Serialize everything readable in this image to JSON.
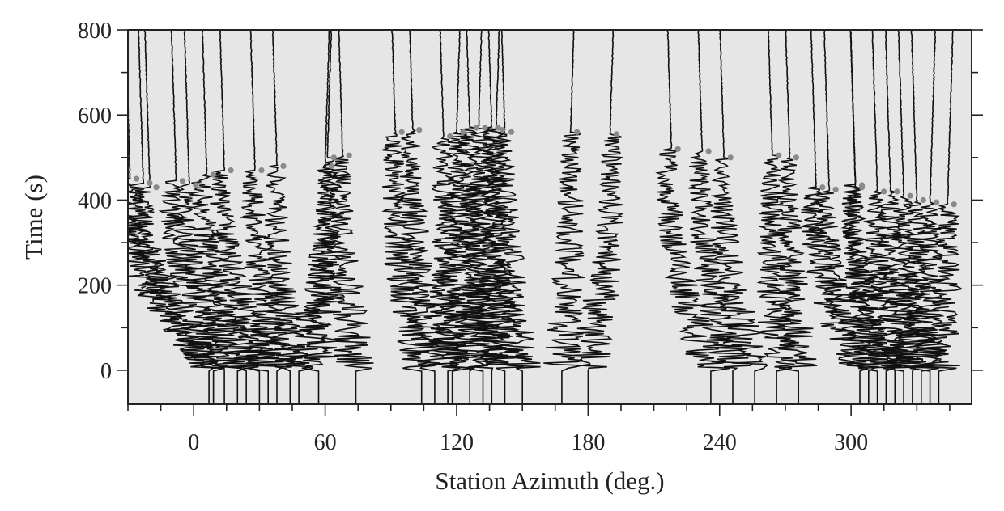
{
  "chart_data": {
    "type": "line",
    "title": "",
    "xlabel": "Station Azimuth (deg.)",
    "ylabel": "Time (s)",
    "xlim": [
      -30,
      355
    ],
    "ylim": [
      -80,
      800
    ],
    "x_ticks": [
      0,
      60,
      120,
      180,
      240,
      300
    ],
    "y_ticks": [
      0,
      200,
      400,
      600,
      800
    ],
    "x_minor_step": 15,
    "y_minor_step": 100,
    "plot_background": "#e6e6e6",
    "trace_color": "#111111",
    "marker_color": "#8a8a8a",
    "grid": false,
    "legend": "none",
    "series_description": "Seismogram traces plotted at station azimuth; each trace is flat near its azimuth before t=0, then wiggles with increasing offset to the right and settles after the marked (gray dot) time.",
    "traces": [
      {
        "azimuth": 7,
        "drift": -36,
        "marker_time": 450
      },
      {
        "azimuth": 9,
        "drift": -32,
        "marker_time": 440
      },
      {
        "azimuth": 14,
        "drift": -34,
        "marker_time": 430
      },
      {
        "azimuth": 20,
        "drift": -28,
        "marker_time": 445
      },
      {
        "azimuth": 24,
        "drift": -26,
        "marker_time": 435
      },
      {
        "azimuth": 30,
        "drift": -24,
        "marker_time": 460
      },
      {
        "azimuth": 34,
        "drift": -20,
        "marker_time": 470
      },
      {
        "azimuth": 38,
        "drift": -10,
        "marker_time": 470
      },
      {
        "azimuth": 44,
        "drift": -6,
        "marker_time": 480
      },
      {
        "azimuth": 48,
        "drift": 12,
        "marker_time": 480
      },
      {
        "azimuth": 57,
        "drift": 4,
        "marker_time": 500
      },
      {
        "azimuth": 74,
        "drift": -6,
        "marker_time": 505
      },
      {
        "azimuth": 104,
        "drift": -12,
        "marker_time": 560
      },
      {
        "azimuth": 110,
        "drift": -10,
        "marker_time": 565
      },
      {
        "azimuth": 116,
        "drift": 4,
        "marker_time": 560
      },
      {
        "azimuth": 118,
        "drift": -4,
        "marker_time": 550
      },
      {
        "azimuth": 126,
        "drift": 4,
        "marker_time": 570
      },
      {
        "azimuth": 132,
        "drift": -6,
        "marker_time": 570
      },
      {
        "azimuth": 136,
        "drift": 2,
        "marker_time": 565
      },
      {
        "azimuth": 142,
        "drift": -6,
        "marker_time": 570
      },
      {
        "azimuth": 150,
        "drift": -8,
        "marker_time": 560
      },
      {
        "azimuth": 168,
        "drift": 4,
        "marker_time": 560
      },
      {
        "azimuth": 180,
        "drift": 10,
        "marker_time": 555
      },
      {
        "azimuth": 236,
        "drift": -18,
        "marker_time": 520
      },
      {
        "azimuth": 246,
        "drift": -14,
        "marker_time": 515
      },
      {
        "azimuth": 256,
        "drift": -14,
        "marker_time": 500
      },
      {
        "azimuth": 266,
        "drift": -2,
        "marker_time": 505
      },
      {
        "azimuth": 276,
        "drift": -4,
        "marker_time": 500
      },
      {
        "azimuth": 304,
        "drift": -20,
        "marker_time": 430
      },
      {
        "azimuth": 308,
        "drift": -18,
        "marker_time": 425
      },
      {
        "azimuth": 312,
        "drift": -10,
        "marker_time": 435
      },
      {
        "azimuth": 316,
        "drift": -14,
        "marker_time": 430
      },
      {
        "azimuth": 320,
        "drift": -8,
        "marker_time": 420
      },
      {
        "azimuth": 324,
        "drift": -6,
        "marker_time": 420
      },
      {
        "azimuth": 328,
        "drift": -4,
        "marker_time": 410
      },
      {
        "azimuth": 332,
        "drift": -2,
        "marker_time": 400
      },
      {
        "azimuth": 336,
        "drift": 0,
        "marker_time": 395
      },
      {
        "azimuth": 340,
        "drift": 4,
        "marker_time": 390
      }
    ]
  }
}
